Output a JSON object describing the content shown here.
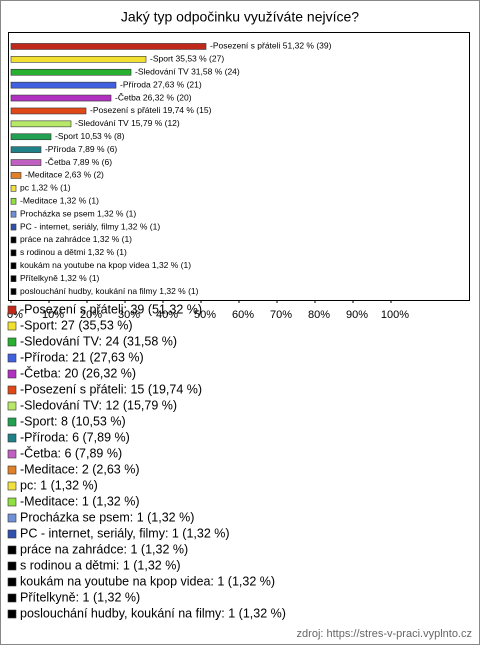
{
  "chart_data": {
    "type": "hbar",
    "title": "Jaký typ odpočinku využíváte nejvíce?",
    "categories": [
      "-Posezení s přáteli",
      "-Sport",
      "-Sledování TV",
      "-Příroda",
      "-Četba",
      "-Posezení s přáteli",
      "-Sledování TV",
      "-Sport",
      "-Příroda",
      "-Četba",
      "-Meditace",
      "pc",
      "-Meditace",
      "Procházka se psem",
      "PC - internet, seriály, filmy",
      "práce na zahrádce",
      "s rodinou a dětmi",
      "koukám na youtube na kpop videa",
      "Přítelkyně",
      "poslouchání hudby, koukání na filmy"
    ],
    "values": [
      51.32,
      35.53,
      31.58,
      27.63,
      26.32,
      19.74,
      15.79,
      10.53,
      7.89,
      7.89,
      2.63,
      1.32,
      1.32,
      1.32,
      1.32,
      1.32,
      1.32,
      1.32,
      1.32,
      1.32
    ],
    "value_labels": [
      "-Posezení s přáteli 51,32 % (39)",
      "-Sport 35,53 % (27)",
      "-Sledování TV 31,58 % (24)",
      "-Příroda 27,63 % (21)",
      "-Četba 26,32 % (20)",
      "-Posezení s přáteli 19,74 % (15)",
      "-Sledování TV 15,79 % (12)",
      "-Sport 10,53 % (8)",
      "-Příroda 7,89 % (6)",
      "-Četba 7,89 % (6)",
      "-Meditace 2,63 % (2)",
      "pc 1,32 % (1)",
      "-Meditace 1,32 % (1)",
      "Procházka se psem 1,32 % (1)",
      "PC - internet, seriály, filmy 1,32 % (1)",
      "práce na zahrádce 1,32 % (1)",
      "s rodinou a dětmi 1,32 % (1)",
      "koukám na youtube na kpop videa 1,32 % (1)",
      "Přítelkyně 1,32 % (1)",
      "poslouchání hudby, koukání na filmy 1,32 % (1)"
    ],
    "legend_labels": [
      "-Posezení s přáteli: 39 (51,32 %)",
      "-Sport: 27 (35,53 %)",
      "-Sledování TV: 24 (31,58 %)",
      "-Příroda: 21 (27,63 %)",
      "-Četba: 20 (26,32 %)",
      "-Posezení s přáteli: 15 (19,74 %)",
      "-Sledování TV: 12 (15,79 %)",
      "-Sport: 8 (10,53 %)",
      "-Příroda: 6 (7,89 %)",
      "-Četba: 6 (7,89 %)",
      "-Meditace: 2 (2,63 %)",
      "pc: 1 (1,32 %)",
      "-Meditace: 1 (1,32 %)",
      "Procházka se psem: 1 (1,32 %)",
      "PC - internet, seriály, filmy: 1 (1,32 %)",
      "práce na zahrádce: 1 (1,32 %)",
      "s rodinou a dětmi: 1 (1,32 %)",
      "koukám na youtube na kpop videa: 1 (1,32 %)",
      "Přítelkyně: 1 (1,32 %)",
      "poslouchání hudby, koukání na filmy: 1 (1,32 %)"
    ],
    "colors": [
      "#c0281c",
      "#f2e030",
      "#28b030",
      "#4060e0",
      "#b030c0",
      "#e04818",
      "#b8e868",
      "#20a050",
      "#208088",
      "#c060c0",
      "#e08028",
      "#f0e040",
      "#90e040",
      "#7090d8",
      "#3050b0",
      "#000000",
      "#000000",
      "#000000",
      "#000000",
      "#000000"
    ],
    "xlim": [
      0,
      100
    ],
    "xticks": [
      {
        "value": 0,
        "label": "0%"
      },
      {
        "value": 10,
        "label": "10%"
      },
      {
        "value": 20,
        "label": "20%"
      },
      {
        "value": 30,
        "label": "30%"
      },
      {
        "value": 40,
        "label": "40%"
      },
      {
        "value": 50,
        "label": "50%"
      },
      {
        "value": 60,
        "label": "60%"
      },
      {
        "value": 70,
        "label": "70%"
      },
      {
        "value": 80,
        "label": "80%"
      },
      {
        "value": 90,
        "label": "90%"
      },
      {
        "value": 100,
        "label": "100%"
      }
    ],
    "source": "zdroj: https://stres-v-praci.vyplnto.cz"
  }
}
